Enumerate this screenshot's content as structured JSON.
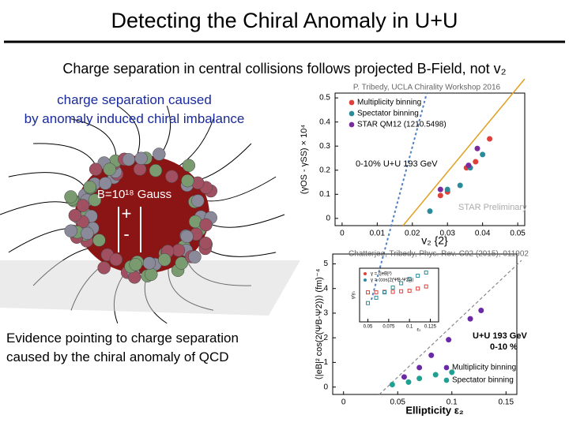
{
  "slide": {
    "title": "Detecting the Chiral Anomaly in U+U",
    "subtitle": "Charge separation in central collisions follows projected B-Field, not v₂",
    "left_top": "charge separation caused by anomaly induced chiral imbalance",
    "field_label": "B=10¹⁸ Gauss",
    "plus": "+",
    "minus": "-",
    "left_bottom": "Evidence pointing to charge separation caused by the chiral anomaly of QCD"
  },
  "chart_data": [
    {
      "type": "scatter",
      "credit": "P. Tribedy, UCLA Chirality Workshop 2016",
      "xlabel": "v₂ {2}",
      "ylabel": "(γOS - γSS) × 10⁴",
      "xlim": [
        -0.002,
        0.052
      ],
      "ylim": [
        -0.03,
        0.52
      ],
      "xticks": [
        0,
        0.01,
        0.02,
        0.03,
        0.04,
        0.05
      ],
      "yticks": [
        0,
        0.1,
        0.2,
        0.3,
        0.4,
        0.5
      ],
      "annotations": [
        "0-10% U+U 193 GeV",
        "STAR Preliminary"
      ],
      "series": [
        {
          "name": "Multiplicity binning",
          "color": "#e0403a",
          "x": [
            0.028,
            0.03,
            0.0354,
            0.038,
            0.042
          ],
          "values": [
            0.095,
            0.11,
            0.21,
            0.235,
            0.33
          ]
        },
        {
          "name": "Spectator binning",
          "color": "#2a8c9a",
          "x": [
            0.025,
            0.03,
            0.0336,
            0.0365,
            0.04
          ],
          "values": [
            0.03,
            0.12,
            0.137,
            0.21,
            0.265
          ]
        },
        {
          "name": "STAR QM12 (1210.5498)",
          "color": "#7a2a9a",
          "x": [
            0.028,
            0.036,
            0.0385
          ],
          "values": [
            0.12,
            0.22,
            0.29
          ]
        }
      ]
    },
    {
      "type": "scatter",
      "credit": "Chatterjee, Tribedy, Phys. Rev. C92 (2015), 011902",
      "xlabel": "Ellipticity ε₂",
      "ylabel": "⟨|eB|² cos(2(ΨB-Ψ2))⟩ (fm)⁻⁴",
      "xlim": [
        -0.01,
        0.16
      ],
      "ylim": [
        -0.3,
        5.4
      ],
      "xticks": [
        0,
        0.05,
        0.1,
        0.15
      ],
      "yticks": [
        0,
        1,
        2,
        3,
        4,
        5
      ],
      "annotations": [
        "U+U 193 GeV",
        "0-10 %"
      ],
      "series": [
        {
          "name": "Multiplicity binning",
          "color": "#6a2aa8",
          "x": [
            0.056,
            0.07,
            0.081,
            0.097,
            0.117,
            0.127
          ],
          "values": [
            0.41,
            0.79,
            1.29,
            1.92,
            2.77,
            3.11
          ]
        },
        {
          "name": "Spectator binning",
          "color": "#20a090",
          "x": [
            0.045,
            0.06,
            0.07,
            0.085,
            0.1
          ],
          "values": [
            0.1,
            0.2,
            0.35,
            0.5,
            0.6
          ]
        }
      ]
    },
    {
      "type": "scatter",
      "xlabel": "ε₂",
      "ylabel": "γ/γ₀",
      "xlim": [
        0.04,
        0.135
      ],
      "ylim": [
        0,
        1
      ],
      "xticks": [
        0.05,
        0.075,
        0.1,
        0.125
      ],
      "series": [
        {
          "name": "γ = ⟨|eB|²⟩",
          "color": "#e0403a",
          "x": [
            0.05,
            0.06,
            0.07,
            0.08,
            0.09,
            0.1,
            0.11,
            0.12
          ],
          "values": [
            0.55,
            0.55,
            0.56,
            0.56,
            0.57,
            0.58,
            0.62,
            0.66
          ]
        },
        {
          "name": "γ = ⟨cos(2(ΨB-Ψ2))⟩",
          "color": "#2a8c9a",
          "x": [
            0.05,
            0.06,
            0.07,
            0.08,
            0.09,
            0.1,
            0.11,
            0.12
          ],
          "values": [
            0.35,
            0.45,
            0.55,
            0.64,
            0.72,
            0.8,
            0.86,
            0.92
          ]
        }
      ]
    }
  ]
}
